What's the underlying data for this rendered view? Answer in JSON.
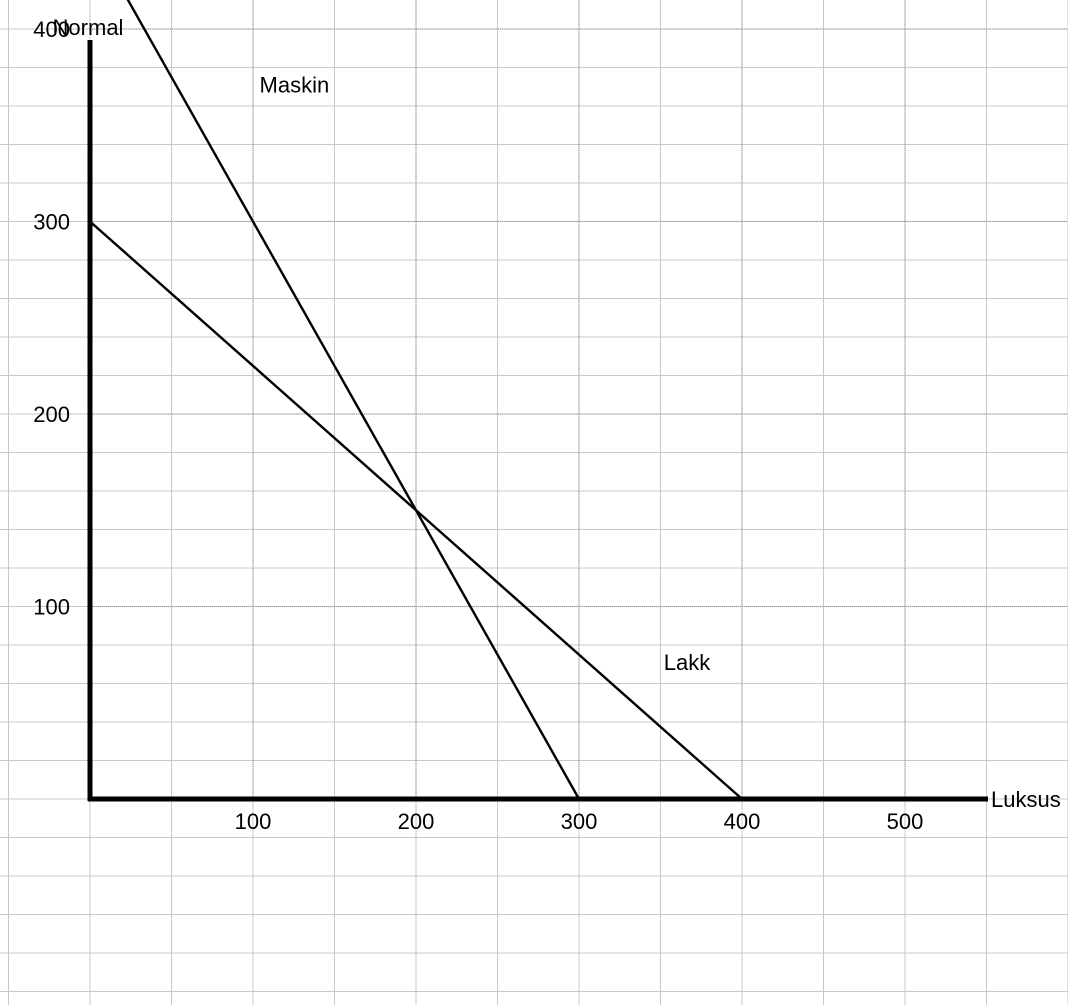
{
  "chart_data": {
    "type": "line",
    "xlabel": "Luksus",
    "ylabel": "Normal",
    "xlim": [
      0,
      550
    ],
    "ylim": [
      0,
      480
    ],
    "x_ticks": [
      100,
      200,
      300,
      400,
      500
    ],
    "y_ticks": [
      100,
      200,
      300,
      400
    ],
    "grid": true,
    "series": [
      {
        "name": "Maskin",
        "x": [
          0,
          300
        ],
        "y": [
          450,
          0
        ]
      },
      {
        "name": "Lakk",
        "x": [
          0,
          400
        ],
        "y": [
          300,
          0
        ]
      }
    ],
    "annotations": [
      {
        "text": "Maskin",
        "x": 104,
        "y": 367
      },
      {
        "text": "Lakk",
        "x": 352,
        "y": 67
      }
    ],
    "colors": {
      "line": "#000000",
      "axis": "#000000",
      "grid": "#c8c8c8",
      "major_grid": "#a0a0a0"
    }
  }
}
